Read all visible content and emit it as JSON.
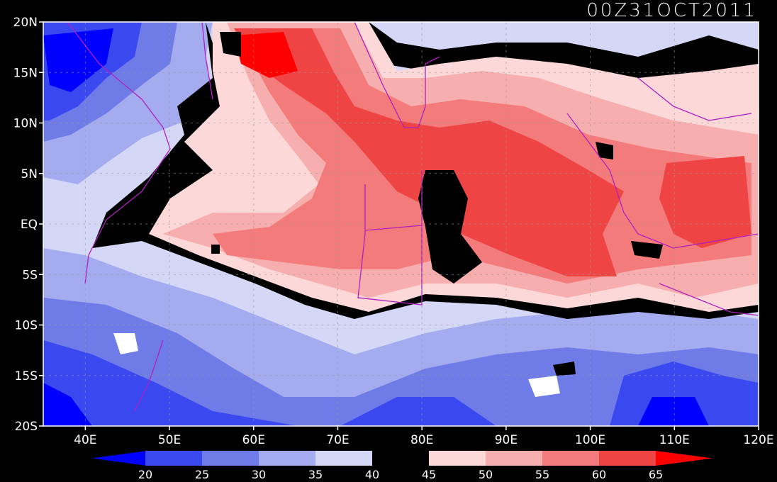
{
  "title": "00Z31OCT2011",
  "map": {
    "lon_range": [
      35,
      120
    ],
    "lat_range": [
      -20,
      20
    ],
    "lon_ticks": [
      {
        "value": 40,
        "label": "40E"
      },
      {
        "value": 50,
        "label": "50E"
      },
      {
        "value": 60,
        "label": "60E"
      },
      {
        "value": 70,
        "label": "70E"
      },
      {
        "value": 80,
        "label": "80E"
      },
      {
        "value": 90,
        "label": "90E"
      },
      {
        "value": 100,
        "label": "100E"
      },
      {
        "value": 110,
        "label": "110E"
      },
      {
        "value": 120,
        "label": "120E"
      }
    ],
    "lat_ticks": [
      {
        "value": 20,
        "label": "20N"
      },
      {
        "value": 15,
        "label": "15N"
      },
      {
        "value": 10,
        "label": "10N"
      },
      {
        "value": 5,
        "label": "5N"
      },
      {
        "value": 0,
        "label": "EQ"
      },
      {
        "value": -5,
        "label": "5S"
      },
      {
        "value": -10,
        "label": "10S"
      },
      {
        "value": -15,
        "label": "15S"
      },
      {
        "value": -20,
        "label": "20S"
      }
    ],
    "gridlines": true
  },
  "colorbar": {
    "levels": [
      "20",
      "25",
      "30",
      "35",
      "40",
      "45",
      "50",
      "55",
      "60",
      "65"
    ],
    "colors": [
      "#0000ff",
      "#3a48f0",
      "#6f7ce8",
      "#a4abee",
      "#d4d8f6",
      "#000000",
      "#fcd8d8",
      "#f7aeae",
      "#f37b7b",
      "#ee4444",
      "#ff0000"
    ]
  }
}
